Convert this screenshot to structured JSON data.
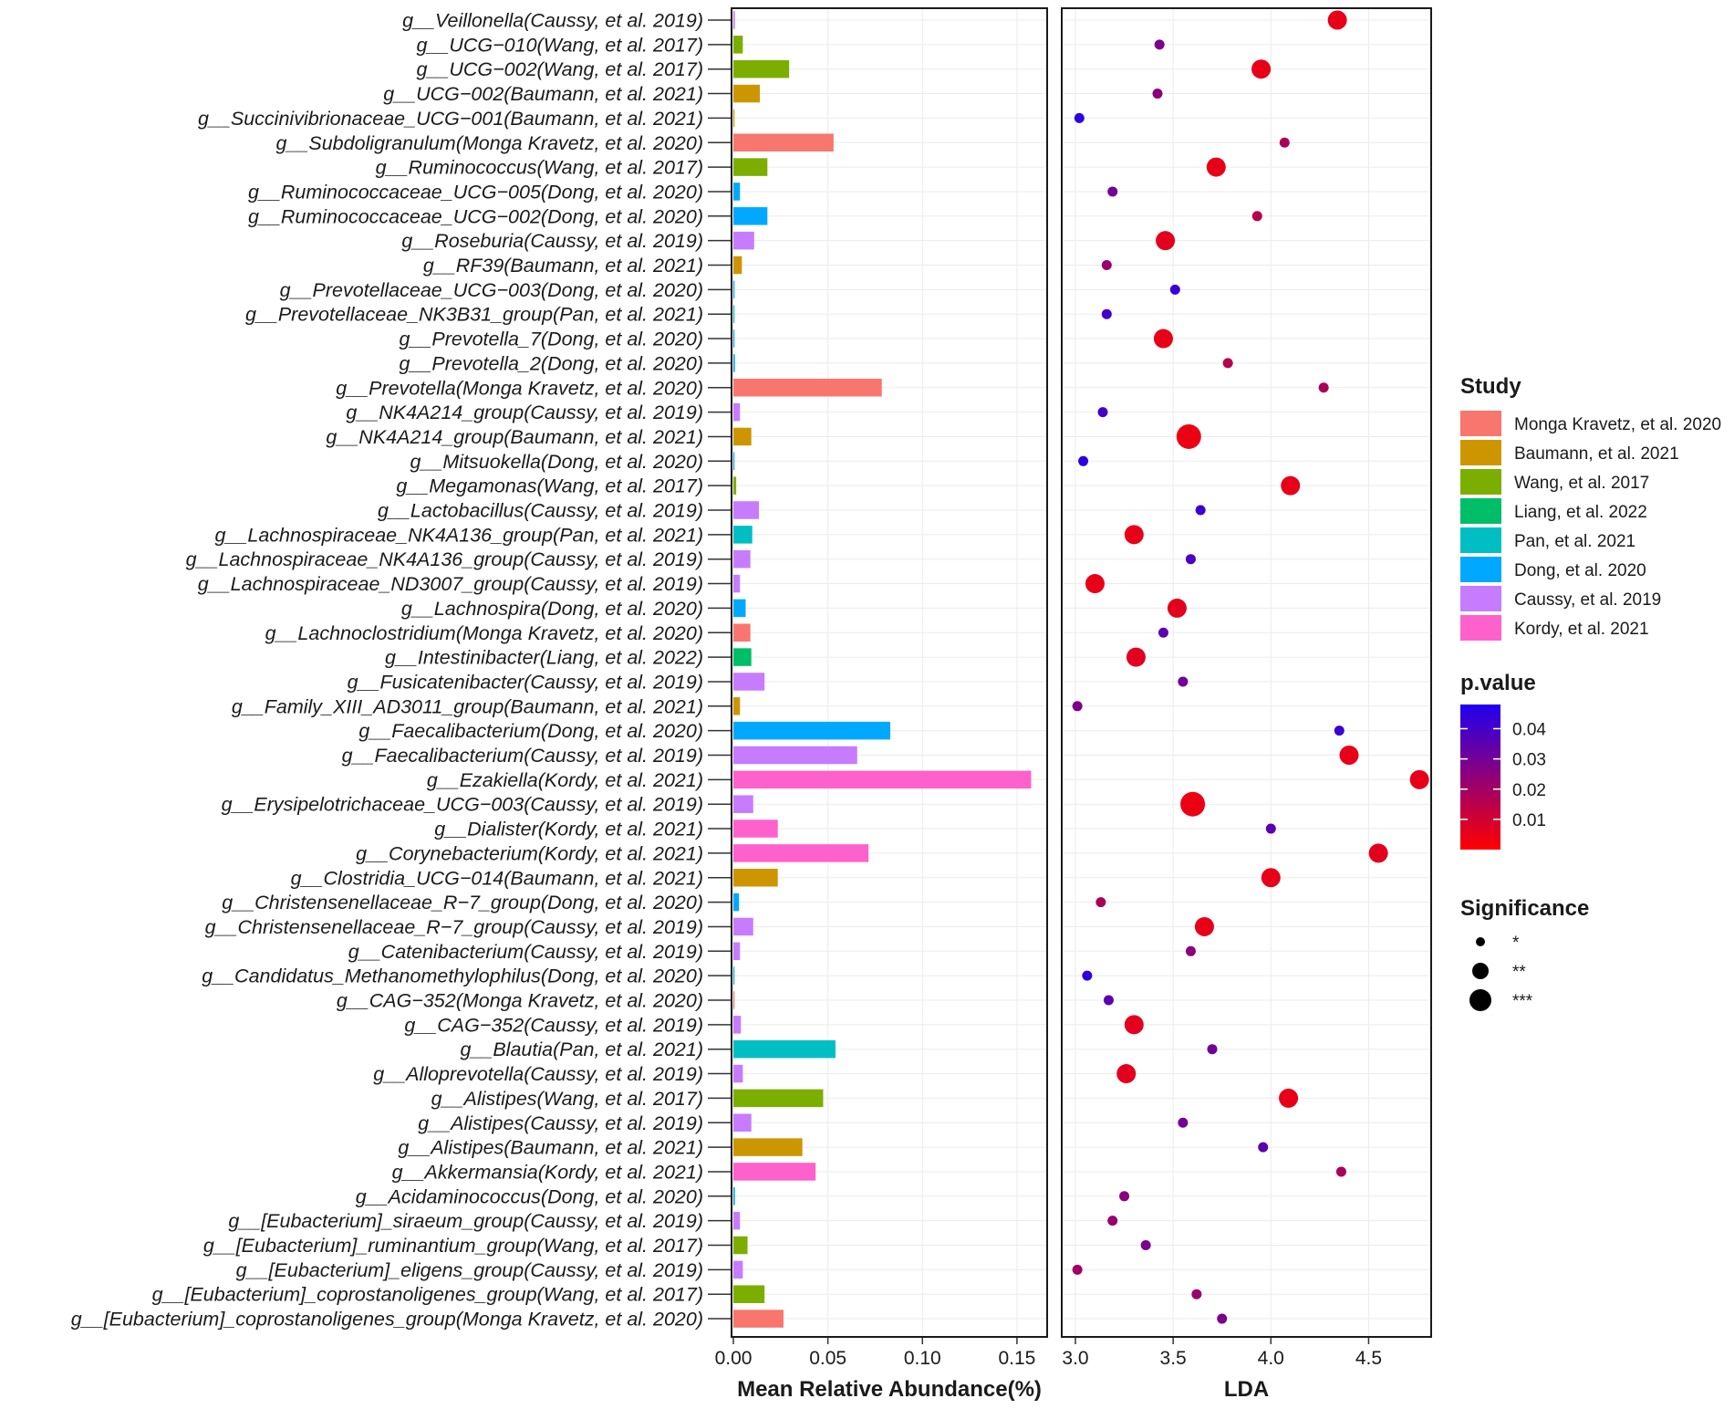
{
  "chart_data": {
    "type": "bar",
    "title": "",
    "panels": [
      {
        "name": "abundance",
        "type": "bar",
        "xlabel": "Mean Relative Abundance(%)",
        "xlim": [
          0,
          0.165
        ],
        "ticks": [
          0.0,
          0.05,
          0.1,
          0.15
        ],
        "tick_labels": [
          "0.00",
          "0.05",
          "0.10",
          "0.15"
        ]
      },
      {
        "name": "lda",
        "type": "scatter",
        "xlabel": "LDA",
        "xlim": [
          2.93,
          4.82
        ],
        "ticks": [
          3.0,
          3.5,
          4.0,
          4.5
        ],
        "tick_labels": [
          "3.0",
          "3.5",
          "4.0",
          "4.5"
        ]
      }
    ],
    "studies": [
      {
        "name": "Monga Kravetz, et al. 2020",
        "color": "#F8766D"
      },
      {
        "name": "Baumann, et al. 2021",
        "color": "#CD9600"
      },
      {
        "name": "Wang, et al. 2017",
        "color": "#7CAE00"
      },
      {
        "name": "Liang, et al. 2022",
        "color": "#00BE67"
      },
      {
        "name": "Pan, et al. 2021",
        "color": "#00BFC4"
      },
      {
        "name": "Dong, et al. 2020",
        "color": "#00A9FF"
      },
      {
        "name": "Caussy, et al. 2019",
        "color": "#C77CFF"
      },
      {
        "name": "Kordy, et al. 2021",
        "color": "#FF61CC"
      }
    ],
    "legend": {
      "study_title": "Study",
      "pvalue_title": "p.value",
      "pvalue_ticks": [
        0.04,
        0.03,
        0.02,
        0.01
      ],
      "pvalue_tick_labels": [
        "0.04",
        "0.03",
        "0.02",
        "0.01"
      ],
      "pvalue_range": [
        0.0,
        0.048
      ],
      "pvalue_colors": [
        "#FF0000",
        "#1F00F0"
      ],
      "significance_title": "Significance",
      "significance_levels": [
        "*",
        "**",
        "***"
      ],
      "position": "right"
    },
    "rows": [
      {
        "label": "g__Veillonella(Caussy, et al. 2019)",
        "study": "Caussy, et al. 2019",
        "abundance": 0.0008,
        "lda": 4.34,
        "p": 0.005,
        "sig": 2
      },
      {
        "label": "g__UCG−010(Wang, et al. 2017)",
        "study": "Wang, et al. 2017",
        "abundance": 0.005,
        "lda": 3.43,
        "p": 0.028,
        "sig": 1
      },
      {
        "label": "g__UCG−002(Wang, et al. 2017)",
        "study": "Wang, et al. 2017",
        "abundance": 0.0295,
        "lda": 3.95,
        "p": 0.005,
        "sig": 2
      },
      {
        "label": "g__UCG−002(Baumann, et al. 2021)",
        "study": "Baumann, et al. 2021",
        "abundance": 0.014,
        "lda": 3.42,
        "p": 0.025,
        "sig": 1
      },
      {
        "label": "g__Succinivibrionaceae_UCG−001(Baumann, et al. 2021)",
        "study": "Baumann, et al. 2021",
        "abundance": 0.0004,
        "lda": 3.02,
        "p": 0.045,
        "sig": 1
      },
      {
        "label": "g__Subdoligranulum(Monga Kravetz, et al. 2020)",
        "study": "Monga Kravetz, et al. 2020",
        "abundance": 0.053,
        "lda": 4.07,
        "p": 0.018,
        "sig": 1
      },
      {
        "label": "g__Ruminococcus(Wang, et al. 2017)",
        "study": "Wang, et al. 2017",
        "abundance": 0.018,
        "lda": 3.72,
        "p": 0.005,
        "sig": 2
      },
      {
        "label": "g__Ruminococcaceae_UCG−005(Dong, et al. 2020)",
        "study": "Dong, et al. 2020",
        "abundance": 0.0035,
        "lda": 3.19,
        "p": 0.03,
        "sig": 1
      },
      {
        "label": "g__Ruminococcaceae_UCG−002(Dong, et al. 2020)",
        "study": "Dong, et al. 2020",
        "abundance": 0.018,
        "lda": 3.93,
        "p": 0.015,
        "sig": 1
      },
      {
        "label": "g__Roseburia(Caussy, et al. 2019)",
        "study": "Caussy, et al. 2019",
        "abundance": 0.011,
        "lda": 3.46,
        "p": 0.006,
        "sig": 2
      },
      {
        "label": "g__RF39(Baumann, et al. 2021)",
        "study": "Baumann, et al. 2021",
        "abundance": 0.0045,
        "lda": 3.16,
        "p": 0.022,
        "sig": 1
      },
      {
        "label": "g__Prevotellaceae_UCG−003(Dong, et al. 2020)",
        "study": "Dong, et al. 2020",
        "abundance": 0.0006,
        "lda": 3.51,
        "p": 0.043,
        "sig": 1
      },
      {
        "label": "g__Prevotellaceae_NK3B31_group(Pan, et al. 2021)",
        "study": "Pan, et al. 2021",
        "abundance": 0.0005,
        "lda": 3.16,
        "p": 0.04,
        "sig": 1
      },
      {
        "label": "g__Prevotella_7(Dong, et al. 2020)",
        "study": "Dong, et al. 2020",
        "abundance": 0.0005,
        "lda": 3.45,
        "p": 0.005,
        "sig": 2
      },
      {
        "label": "g__Prevotella_2(Dong, et al. 2020)",
        "study": "Dong, et al. 2020",
        "abundance": 0.0008,
        "lda": 3.78,
        "p": 0.015,
        "sig": 1
      },
      {
        "label": "g__Prevotella(Monga Kravetz, et al. 2020)",
        "study": "Monga Kravetz, et al. 2020",
        "abundance": 0.0785,
        "lda": 4.27,
        "p": 0.018,
        "sig": 1
      },
      {
        "label": "g__NK4A214_group(Caussy, et al. 2019)",
        "study": "Caussy, et al. 2019",
        "abundance": 0.0035,
        "lda": 3.14,
        "p": 0.04,
        "sig": 1
      },
      {
        "label": "g__NK4A214_group(Baumann, et al. 2021)",
        "study": "Baumann, et al. 2021",
        "abundance": 0.0095,
        "lda": 3.58,
        "p": 0.004,
        "sig": 3
      },
      {
        "label": "g__Mitsuokella(Dong, et al. 2020)",
        "study": "Dong, et al. 2020",
        "abundance": 0.0004,
        "lda": 3.04,
        "p": 0.045,
        "sig": 1
      },
      {
        "label": "g__Megamonas(Wang, et al. 2017)",
        "study": "Wang, et al. 2017",
        "abundance": 0.0015,
        "lda": 4.1,
        "p": 0.005,
        "sig": 2
      },
      {
        "label": "g__Lactobacillus(Caussy, et al. 2019)",
        "study": "Caussy, et al. 2019",
        "abundance": 0.0135,
        "lda": 3.64,
        "p": 0.042,
        "sig": 1
      },
      {
        "label": "g__Lachnospiraceae_NK4A136_group(Pan, et al. 2021)",
        "study": "Pan, et al. 2021",
        "abundance": 0.01,
        "lda": 3.3,
        "p": 0.005,
        "sig": 2
      },
      {
        "label": "g__Lachnospiraceae_NK4A136_group(Caussy, et al. 2019)",
        "study": "Caussy, et al. 2019",
        "abundance": 0.009,
        "lda": 3.59,
        "p": 0.038,
        "sig": 1
      },
      {
        "label": "g__Lachnospiraceae_ND3007_group(Caussy, et al. 2019)",
        "study": "Caussy, et al. 2019",
        "abundance": 0.0035,
        "lda": 3.1,
        "p": 0.005,
        "sig": 2
      },
      {
        "label": "g__Lachnospira(Dong, et al. 2020)",
        "study": "Dong, et al. 2020",
        "abundance": 0.0065,
        "lda": 3.52,
        "p": 0.006,
        "sig": 2
      },
      {
        "label": "g__Lachnoclostridium(Monga Kravetz, et al. 2020)",
        "study": "Monga Kravetz, et al. 2020",
        "abundance": 0.009,
        "lda": 3.45,
        "p": 0.035,
        "sig": 1
      },
      {
        "label": "g__Intestinibacter(Liang, et al. 2022)",
        "study": "Liang, et al. 2022",
        "abundance": 0.0095,
        "lda": 3.31,
        "p": 0.006,
        "sig": 2
      },
      {
        "label": "g__Fusicatenibacter(Caussy, et al. 2019)",
        "study": "Caussy, et al. 2019",
        "abundance": 0.0165,
        "lda": 3.55,
        "p": 0.03,
        "sig": 1
      },
      {
        "label": "g__Family_XIII_AD3011_group(Baumann, et al. 2021)",
        "study": "Baumann, et al. 2021",
        "abundance": 0.0035,
        "lda": 3.01,
        "p": 0.028,
        "sig": 1
      },
      {
        "label": "g__Faecalibacterium(Dong, et al. 2020)",
        "study": "Dong, et al. 2020",
        "abundance": 0.083,
        "lda": 4.35,
        "p": 0.042,
        "sig": 1
      },
      {
        "label": "g__Faecalibacterium(Caussy, et al. 2019)",
        "study": "Caussy, et al. 2019",
        "abundance": 0.0655,
        "lda": 4.4,
        "p": 0.005,
        "sig": 2
      },
      {
        "label": "g__Ezakiella(Kordy, et al. 2021)",
        "study": "Kordy, et al. 2021",
        "abundance": 0.1575,
        "lda": 4.76,
        "p": 0.005,
        "sig": 2
      },
      {
        "label": "g__Erysipelotrichaceae_UCG−003(Caussy, et al. 2019)",
        "study": "Caussy, et al. 2019",
        "abundance": 0.0105,
        "lda": 3.6,
        "p": 0.004,
        "sig": 3
      },
      {
        "label": "g__Dialister(Kordy, et al. 2021)",
        "study": "Kordy, et al. 2021",
        "abundance": 0.0235,
        "lda": 4.0,
        "p": 0.035,
        "sig": 1
      },
      {
        "label": "g__Corynebacterium(Kordy, et al. 2021)",
        "study": "Kordy, et al. 2021",
        "abundance": 0.0715,
        "lda": 4.55,
        "p": 0.006,
        "sig": 2
      },
      {
        "label": "g__Clostridia_UCG−014(Baumann, et al. 2021)",
        "study": "Baumann, et al. 2021",
        "abundance": 0.0235,
        "lda": 4.0,
        "p": 0.005,
        "sig": 2
      },
      {
        "label": "g__Christensenellaceae_R−7_group(Dong, et al. 2020)",
        "study": "Dong, et al. 2020",
        "abundance": 0.003,
        "lda": 3.13,
        "p": 0.018,
        "sig": 1
      },
      {
        "label": "g__Christensenellaceae_R−7_group(Caussy, et al. 2019)",
        "study": "Caussy, et al. 2019",
        "abundance": 0.0105,
        "lda": 3.66,
        "p": 0.005,
        "sig": 2
      },
      {
        "label": "g__Catenibacterium(Caussy, et al. 2019)",
        "study": "Caussy, et al. 2019",
        "abundance": 0.0035,
        "lda": 3.59,
        "p": 0.025,
        "sig": 1
      },
      {
        "label": "g__Candidatus_Methanomethylophilus(Dong, et al. 2020)",
        "study": "Dong, et al. 2020",
        "abundance": 0.0004,
        "lda": 3.06,
        "p": 0.045,
        "sig": 1
      },
      {
        "label": "g__CAG−352(Monga Kravetz, et al. 2020)",
        "study": "Monga Kravetz, et al. 2020",
        "abundance": 0.0006,
        "lda": 3.17,
        "p": 0.035,
        "sig": 1
      },
      {
        "label": "g__CAG−352(Caussy, et al. 2019)",
        "study": "Caussy, et al. 2019",
        "abundance": 0.004,
        "lda": 3.3,
        "p": 0.006,
        "sig": 2
      },
      {
        "label": "g__Blautia(Pan, et al. 2021)",
        "study": "Pan, et al. 2021",
        "abundance": 0.054,
        "lda": 3.7,
        "p": 0.03,
        "sig": 1
      },
      {
        "label": "g__Alloprevotella(Caussy, et al. 2019)",
        "study": "Caussy, et al. 2019",
        "abundance": 0.005,
        "lda": 3.26,
        "p": 0.006,
        "sig": 2
      },
      {
        "label": "g__Alistipes(Wang, et al. 2017)",
        "study": "Wang, et al. 2017",
        "abundance": 0.0475,
        "lda": 4.09,
        "p": 0.005,
        "sig": 2
      },
      {
        "label": "g__Alistipes(Caussy, et al. 2019)",
        "study": "Caussy, et al. 2019",
        "abundance": 0.0095,
        "lda": 3.55,
        "p": 0.03,
        "sig": 1
      },
      {
        "label": "g__Alistipes(Baumann, et al. 2021)",
        "study": "Baumann, et al. 2021",
        "abundance": 0.0365,
        "lda": 3.96,
        "p": 0.035,
        "sig": 1
      },
      {
        "label": "g__Akkermansia(Kordy, et al. 2021)",
        "study": "Kordy, et al. 2021",
        "abundance": 0.0435,
        "lda": 4.36,
        "p": 0.018,
        "sig": 1
      },
      {
        "label": "g__Acidaminococcus(Dong, et al. 2020)",
        "study": "Dong, et al. 2020",
        "abundance": 0.0008,
        "lda": 3.25,
        "p": 0.025,
        "sig": 1
      },
      {
        "label": "g__[Eubacterium]_siraeum_group(Caussy, et al. 2019)",
        "study": "Caussy, et al. 2019",
        "abundance": 0.0035,
        "lda": 3.19,
        "p": 0.022,
        "sig": 1
      },
      {
        "label": "g__[Eubacterium]_ruminantium_group(Wang, et al. 2017)",
        "study": "Wang, et al. 2017",
        "abundance": 0.0075,
        "lda": 3.36,
        "p": 0.028,
        "sig": 1
      },
      {
        "label": "g__[Eubacterium]_eligens_group(Caussy, et al. 2019)",
        "study": "Caussy, et al. 2019",
        "abundance": 0.005,
        "lda": 3.01,
        "p": 0.02,
        "sig": 1
      },
      {
        "label": "g__[Eubacterium]_coprostanoligenes_group(Wang, et al. 2017)",
        "study": "Wang, et al. 2017",
        "abundance": 0.0165,
        "lda": 3.62,
        "p": 0.022,
        "sig": 1
      },
      {
        "label": "g__[Eubacterium]_coprostanoligenes_group(Monga Kravetz, et al. 2020)",
        "study": "Monga Kravetz, et al. 2020",
        "abundance": 0.0265,
        "lda": 3.75,
        "p": 0.028,
        "sig": 1
      }
    ]
  }
}
